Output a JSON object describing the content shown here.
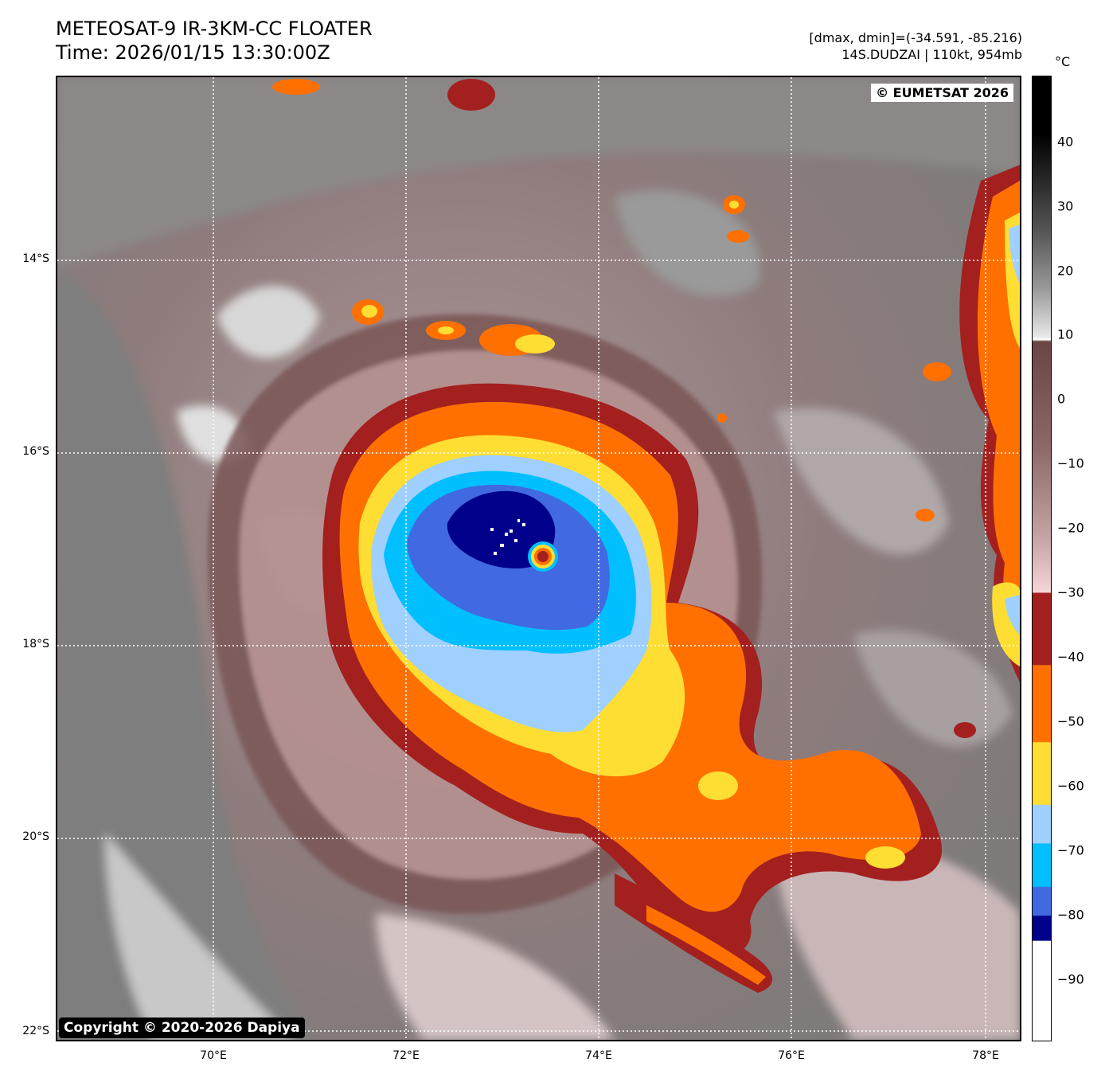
{
  "header": {
    "title_line1": "METEOSAT-9 IR-3KM-CC FLOATER",
    "title_line2": "Time: 2026/01/15 13:30:00Z",
    "range_text": "[dmax, dmin]=(-34.591, -85.216)",
    "storm_text": "14S.DUDZAI | 110kt, 954mb"
  },
  "map": {
    "eumetsat_copyright": "© EUMETSAT 2026",
    "dapiya_copyright": "Copyright © 2020-2026 Dapiya",
    "latitude_labels": [
      "14°S",
      "16°S",
      "18°S",
      "20°S",
      "22°S"
    ],
    "longitude_labels": [
      "70°E",
      "72°E",
      "74°E",
      "76°E",
      "78°E"
    ],
    "storm_name": "14S.DUDZAI"
  },
  "colorbar": {
    "unit": "°C",
    "ticks": [
      "40",
      "30",
      "20",
      "10",
      "0",
      "−10",
      "−20",
      "−30",
      "−40",
      "−50",
      "−60",
      "−70",
      "−80",
      "−90"
    ],
    "colors": {
      "white_cold": "#ffffff",
      "navy": "#00008b",
      "royal_blue": "#4169e1",
      "deep_sky_blue": "#00bfff",
      "light_blue": "#9fd0ff",
      "yellow": "#ffde33",
      "orange": "#ff7000",
      "dark_red": "#a3201f",
      "pink": "#f5d5d5",
      "warm_brown": "#6a4545",
      "light_gray": "#e8e8e8",
      "black": "#000000"
    }
  }
}
